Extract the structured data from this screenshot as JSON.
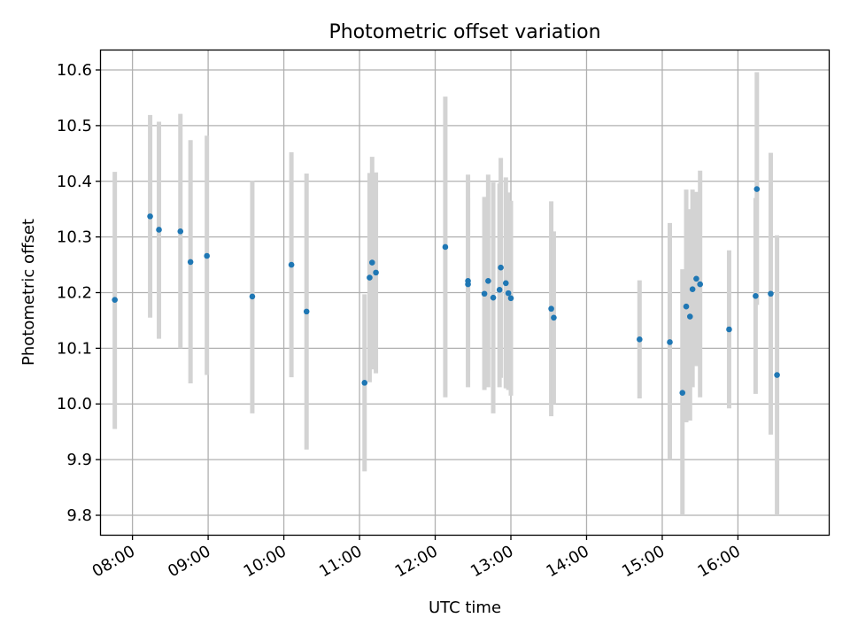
{
  "chart_data": {
    "type": "scatter",
    "title": "Photometric offset variation",
    "xlabel": "UTC time",
    "ylabel": "Photometric offset",
    "xlim": [
      "07:35",
      "17:12"
    ],
    "ylim": [
      9.765,
      10.635
    ],
    "x_ticks": [
      "08:00",
      "09:00",
      "10:00",
      "11:00",
      "12:00",
      "13:00",
      "14:00",
      "15:00",
      "16:00"
    ],
    "y_ticks": [
      9.8,
      9.9,
      10.0,
      10.1,
      10.2,
      10.3,
      10.4,
      10.5,
      10.6
    ],
    "y_tick_labels": [
      "9.8",
      "9.9",
      "10.0",
      "10.1",
      "10.2",
      "10.3",
      "10.4",
      "10.5",
      "10.6"
    ],
    "grid": true,
    "point_color": "#1f77b4",
    "errorbar_color": "#d3d3d3",
    "points": [
      {
        "x": "07:46",
        "y": 10.187,
        "lo": 9.955,
        "hi": 10.417
      },
      {
        "x": "08:14",
        "y": 10.337,
        "lo": 10.155,
        "hi": 10.519
      },
      {
        "x": "08:21",
        "y": 10.313,
        "lo": 10.117,
        "hi": 10.507
      },
      {
        "x": "08:38",
        "y": 10.31,
        "lo": 10.1,
        "hi": 10.521
      },
      {
        "x": "08:46",
        "y": 10.255,
        "lo": 10.037,
        "hi": 10.474
      },
      {
        "x": "08:59",
        "y": 10.266,
        "lo": 10.052,
        "hi": 10.482
      },
      {
        "x": "09:35",
        "y": 10.193,
        "lo": 9.983,
        "hi": 10.401
      },
      {
        "x": "10:06",
        "y": 10.25,
        "lo": 10.048,
        "hi": 10.452
      },
      {
        "x": "10:18",
        "y": 10.166,
        "lo": 9.918,
        "hi": 10.414
      },
      {
        "x": "11:04",
        "y": 10.038,
        "lo": 9.879,
        "hi": 10.197
      },
      {
        "x": "11:08",
        "y": 10.227,
        "lo": 10.039,
        "hi": 10.415
      },
      {
        "x": "11:10",
        "y": 10.254,
        "lo": 10.062,
        "hi": 10.444
      },
      {
        "x": "11:13",
        "y": 10.236,
        "lo": 10.055,
        "hi": 10.416
      },
      {
        "x": "12:08",
        "y": 10.282,
        "lo": 10.012,
        "hi": 10.552
      },
      {
        "x": "12:26",
        "y": 10.221,
        "lo": 10.03,
        "hi": 10.412
      },
      {
        "x": "12:26",
        "y": 10.215,
        "lo": 10.06,
        "hi": 10.37
      },
      {
        "x": "12:39",
        "y": 10.198,
        "lo": 10.025,
        "hi": 10.372
      },
      {
        "x": "12:42",
        "y": 10.221,
        "lo": 10.03,
        "hi": 10.412
      },
      {
        "x": "12:46",
        "y": 10.191,
        "lo": 9.983,
        "hi": 10.398
      },
      {
        "x": "12:51",
        "y": 10.205,
        "lo": 10.03,
        "hi": 10.396
      },
      {
        "x": "12:52",
        "y": 10.245,
        "lo": 10.047,
        "hi": 10.442
      },
      {
        "x": "12:56",
        "y": 10.217,
        "lo": 10.028,
        "hi": 10.407
      },
      {
        "x": "12:58",
        "y": 10.199,
        "lo": 10.025,
        "hi": 10.38
      },
      {
        "x": "13:00",
        "y": 10.19,
        "lo": 10.015,
        "hi": 10.365
      },
      {
        "x": "13:32",
        "y": 10.171,
        "lo": 9.978,
        "hi": 10.364
      },
      {
        "x": "13:34",
        "y": 10.155,
        "lo": 10.0,
        "hi": 10.31
      },
      {
        "x": "14:42",
        "y": 10.116,
        "lo": 10.01,
        "hi": 10.222
      },
      {
        "x": "15:06",
        "y": 10.111,
        "lo": 9.9,
        "hi": 10.325
      },
      {
        "x": "15:16",
        "y": 10.02,
        "lo": 9.8,
        "hi": 10.242
      },
      {
        "x": "15:19",
        "y": 10.175,
        "lo": 9.967,
        "hi": 10.385
      },
      {
        "x": "15:22",
        "y": 10.157,
        "lo": 9.97,
        "hi": 10.35
      },
      {
        "x": "15:24",
        "y": 10.206,
        "lo": 10.03,
        "hi": 10.385
      },
      {
        "x": "15:27",
        "y": 10.225,
        "lo": 10.068,
        "hi": 10.381
      },
      {
        "x": "15:30",
        "y": 10.215,
        "lo": 10.012,
        "hi": 10.419
      },
      {
        "x": "15:53",
        "y": 10.134,
        "lo": 9.992,
        "hi": 10.276
      },
      {
        "x": "16:14",
        "y": 10.194,
        "lo": 10.018,
        "hi": 10.37
      },
      {
        "x": "16:15",
        "y": 10.386,
        "lo": 10.178,
        "hi": 10.596
      },
      {
        "x": "16:26",
        "y": 10.198,
        "lo": 9.945,
        "hi": 10.451
      },
      {
        "x": "16:31",
        "y": 10.052,
        "lo": 9.8,
        "hi": 10.303
      }
    ]
  }
}
